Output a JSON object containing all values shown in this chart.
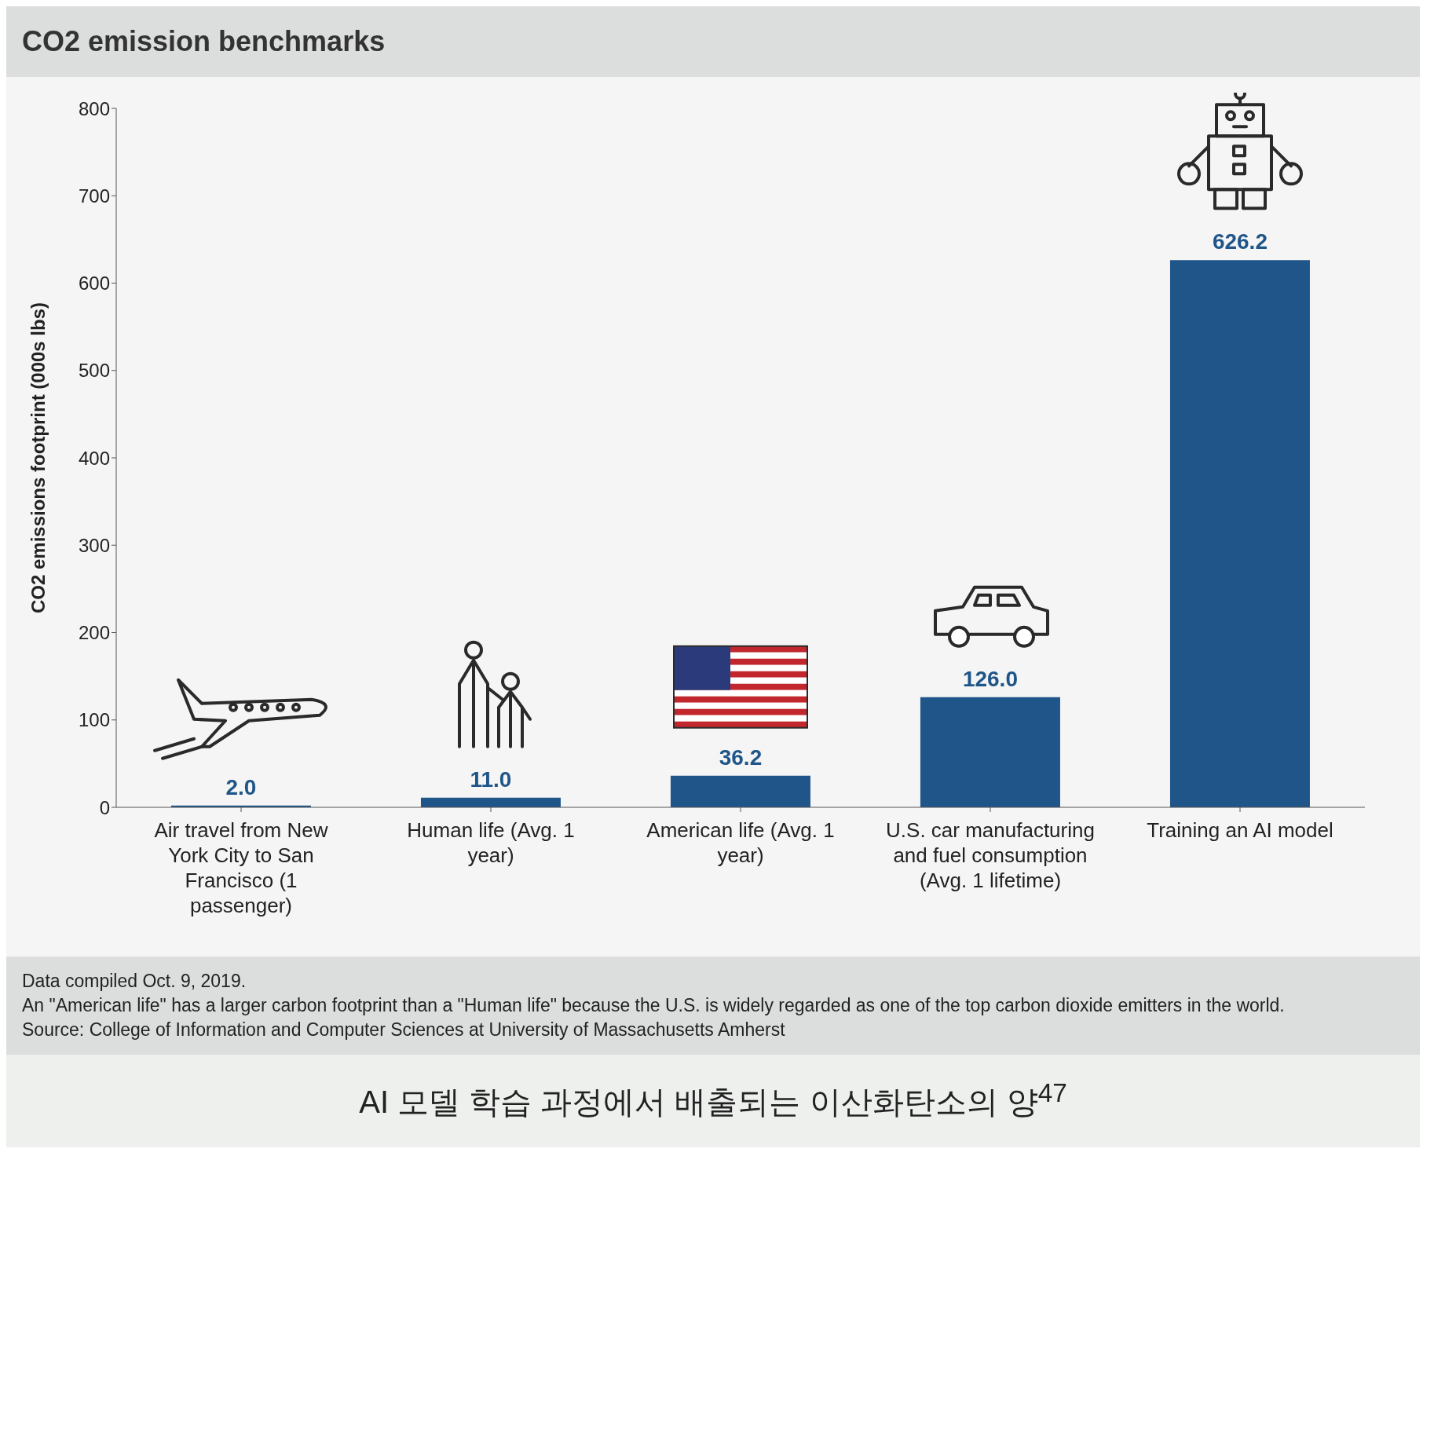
{
  "chart_data": {
    "type": "bar",
    "title": "CO2 emission benchmarks",
    "ylabel": "CO2 emissions footprint (000s lbs)",
    "categories": [
      "Air travel from New York City to San Francisco (1 passenger)",
      "Human life (Avg. 1 year)",
      "American life (Avg. 1 year)",
      "U.S. car manufacturing and fuel consumption (Avg. 1 lifetime)",
      "Training an AI model"
    ],
    "values": [
      2.0,
      11.0,
      36.2,
      126.0,
      626.2
    ],
    "color": "#1f5588",
    "ylim": [
      0,
      800
    ],
    "yticks": [
      0,
      100,
      200,
      300,
      400,
      500,
      600,
      700,
      800
    ],
    "value_labels": [
      "2.0",
      "11.0",
      "36.2",
      "126.0",
      "626.2"
    ],
    "grid": false,
    "legend": false,
    "annotations": [
      "Data compiled Oct. 9, 2019.",
      "An \"American life\" has a larger carbon footprint than a \"Human life\" because the U.S. is widely regarded as one of the top carbon dioxide emitters in the world.",
      "Source: College of Information and Computer Sciences at University of Massachusetts Amherst",
      "AI 모델 학습 과정에서 배출되는 이산화탄소의 양$^{47}$"
    ]
  }
}
